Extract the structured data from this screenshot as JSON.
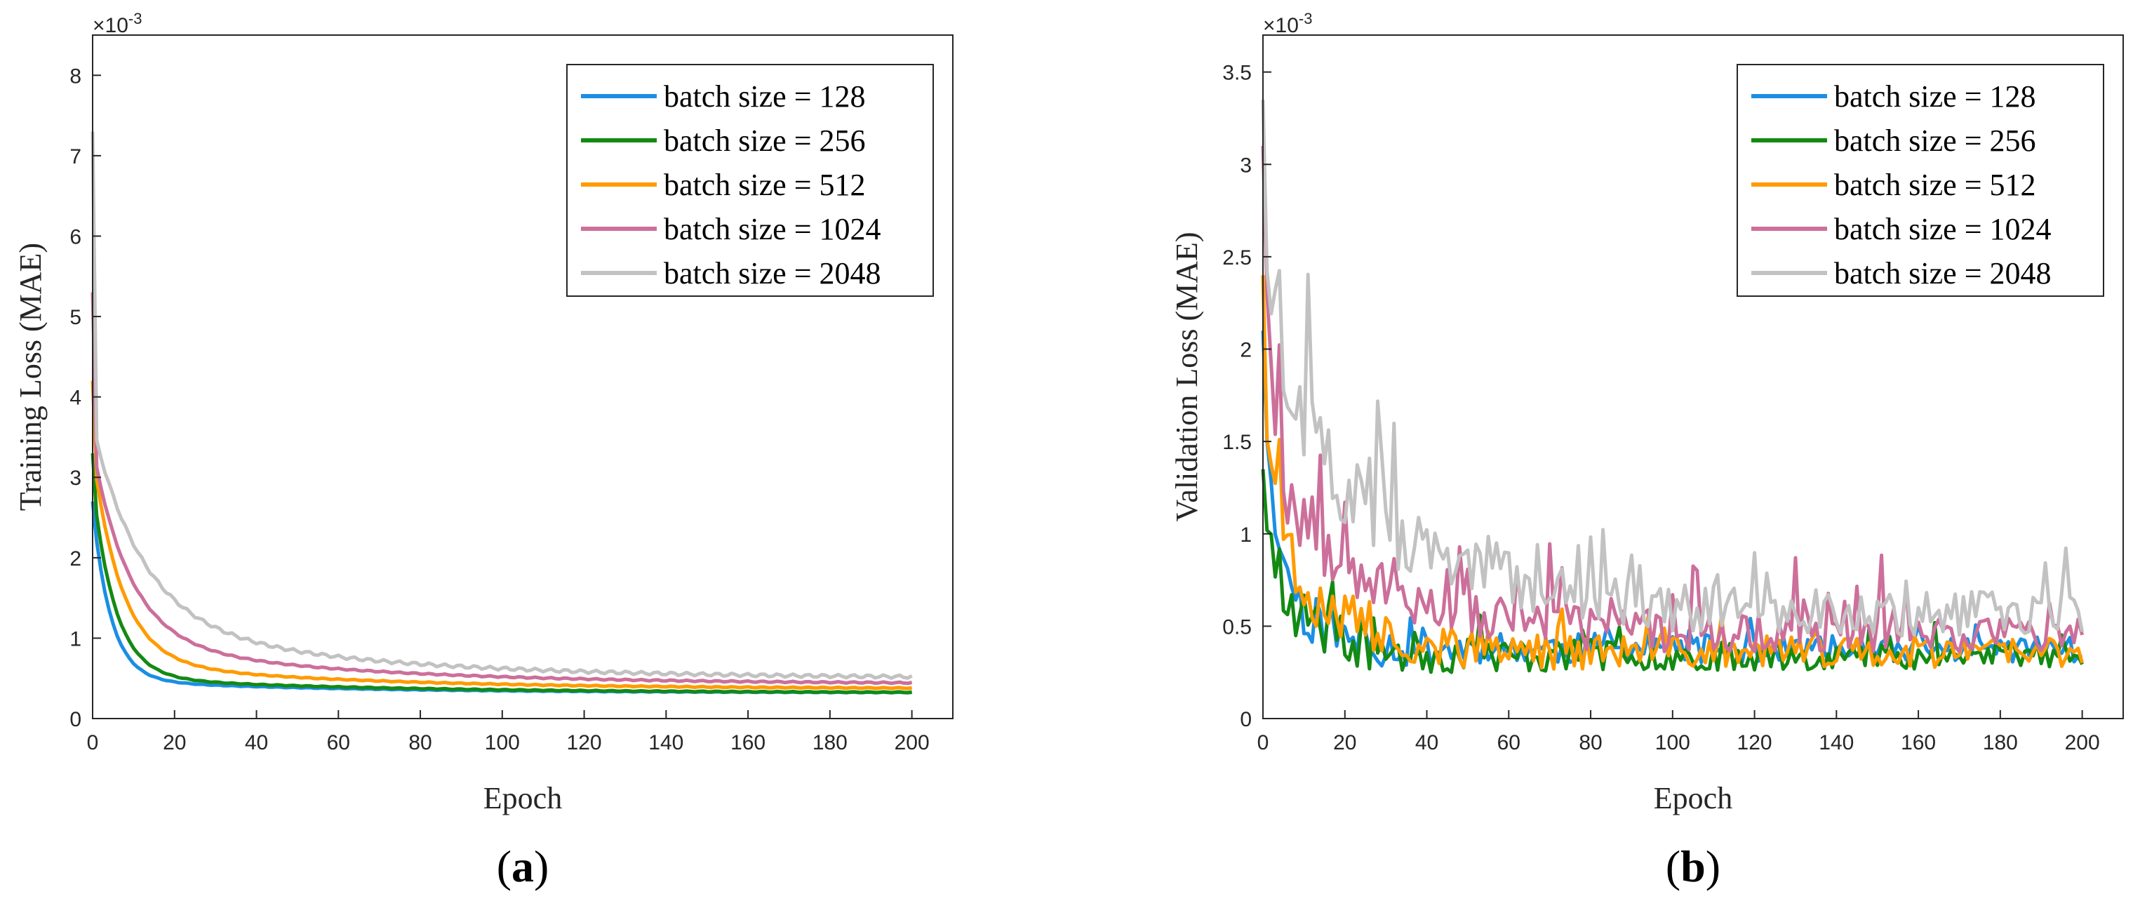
{
  "colors": {
    "axis": "#262626",
    "series": [
      "#1a8fe3",
      "#138a13",
      "#ff9b00",
      "#cc6f9b",
      "#c2c2c2"
    ]
  },
  "chart_data": [
    {
      "type": "line",
      "panel": "a",
      "panel_label": {
        "open": "(",
        "letter": "a",
        "close": ")"
      },
      "xlabel": "Epoch",
      "ylabel": "Training Loss (MAE)",
      "exponent_label": {
        "base": "×10",
        "power": "-3"
      },
      "xlim": [
        0,
        210
      ],
      "ylim": [
        0,
        8.5
      ],
      "xticks": [
        0,
        20,
        40,
        60,
        80,
        100,
        120,
        140,
        160,
        180,
        200
      ],
      "yticks": [
        0,
        1,
        2,
        3,
        4,
        5,
        6,
        7,
        8
      ],
      "legend_position": "top-right",
      "series": [
        {
          "name": "batch size = 128",
          "model": "decay",
          "start": 2.7,
          "final": 0.32,
          "amp": 2.15,
          "tau": 4.5,
          "amp2": 0.16,
          "tau2": 55,
          "noise": 0.004
        },
        {
          "name": "batch size = 256",
          "model": "decay",
          "start": 3.3,
          "final": 0.32,
          "amp": 2.4,
          "tau": 5.5,
          "amp2": 0.2,
          "tau2": 60,
          "noise": 0.005
        },
        {
          "name": "batch size = 512",
          "model": "decay",
          "start": 4.2,
          "final": 0.37,
          "amp": 2.6,
          "tau": 7,
          "amp2": 0.35,
          "tau2": 55,
          "noise": 0.006
        },
        {
          "name": "batch size = 1024",
          "model": "decay",
          "start": 5.3,
          "final": 0.43,
          "amp": 2.4,
          "tau": 9,
          "amp2": 0.55,
          "tau2": 55,
          "noise": 0.008
        },
        {
          "name": "batch size = 2048",
          "model": "decay",
          "start": 7.3,
          "final": 0.5,
          "amp": 2.4,
          "tau": 12,
          "amp2": 0.75,
          "tau2": 55,
          "noise": 0.02
        }
      ]
    },
    {
      "type": "line",
      "panel": "b",
      "panel_label": {
        "open": "(",
        "letter": "b",
        "close": ")"
      },
      "xlabel": "Epoch",
      "ylabel": "Validation Loss (MAE)",
      "exponent_label": {
        "base": "×10",
        "power": "-3"
      },
      "xlim": [
        0,
        210
      ],
      "ylim": [
        0,
        3.7
      ],
      "xticks": [
        0,
        20,
        40,
        60,
        80,
        100,
        120,
        140,
        160,
        180,
        200
      ],
      "yticks": [
        0,
        0.5,
        1,
        1.5,
        2,
        2.5,
        3,
        3.5
      ],
      "ytick_labels": [
        "0",
        "0.5",
        "1",
        "1.5",
        "2",
        "2.5",
        "3",
        "3.5"
      ],
      "legend_position": "top-right",
      "series": [
        {
          "name": "batch size = 128",
          "model": "noisy",
          "start": 2.1,
          "final": 0.37,
          "amp": 0.9,
          "tau": 7,
          "noise": 0.07,
          "spike_p": 0.1,
          "spike": 0.12,
          "seed": 11
        },
        {
          "name": "batch size = 256",
          "model": "noisy",
          "start": 1.35,
          "final": 0.33,
          "amp": 0.55,
          "tau": 10,
          "noise": 0.07,
          "spike_p": 0.1,
          "spike": 0.15,
          "seed": 23
        },
        {
          "name": "batch size = 512",
          "model": "noisy",
          "start": 2.4,
          "final": 0.35,
          "amp": 0.75,
          "tau": 14,
          "noise": 0.08,
          "spike_p": 0.12,
          "spike": 0.2,
          "seed": 37
        },
        {
          "name": "batch size = 1024",
          "model": "noisy",
          "start": 3.1,
          "final": 0.45,
          "amp": 1.0,
          "tau": 22,
          "noise": 0.1,
          "spike_p": 0.15,
          "spike": 0.35,
          "seed": 53
        },
        {
          "name": "batch size = 2048",
          "model": "noisy",
          "start": 3.35,
          "final": 0.55,
          "amp": 1.3,
          "tau": 30,
          "noise": 0.12,
          "spike_p": 0.16,
          "spike": 0.4,
          "seed": 71
        }
      ]
    }
  ]
}
